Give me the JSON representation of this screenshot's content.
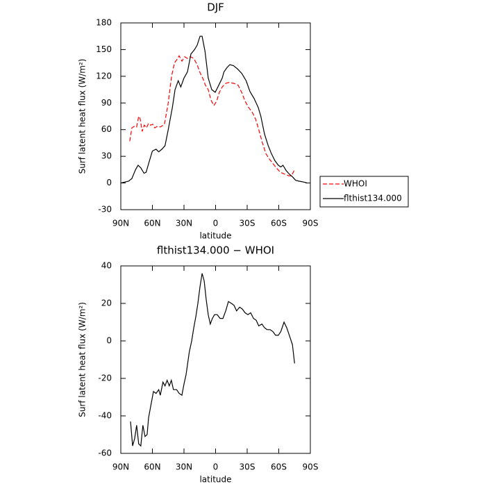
{
  "chart_data": [
    {
      "type": "line",
      "title": "DJF",
      "x_label": "latitude",
      "y_label": "Surf latent heat flux (W/m²)",
      "xlim": [
        90,
        -90
      ],
      "xticks": [
        {
          "value": 90,
          "label": "90N"
        },
        {
          "value": 60,
          "label": "60N"
        },
        {
          "value": 30,
          "label": "30N"
        },
        0,
        {
          "value": -30,
          "label": "30S"
        },
        {
          "value": -60,
          "label": "60S"
        },
        {
          "value": -90,
          "label": "90S"
        }
      ],
      "ylim": [
        -30,
        180
      ],
      "yticks": [
        -30,
        0,
        30,
        60,
        90,
        120,
        150,
        180
      ],
      "legend": "outside right",
      "series": [
        {
          "name": "WHOI",
          "color": "#ff0000",
          "dash": true,
          "x": [
            81.5,
            79.5,
            76.8,
            75,
            73,
            71.6,
            69.7,
            67.7,
            65.7,
            63.7,
            61.7,
            59.7,
            57.7,
            55,
            52.4,
            48.5,
            45,
            41.8,
            39,
            36.6,
            34.6,
            32,
            29.3,
            26.7,
            24,
            20.8,
            17.5,
            14.8,
            12.2,
            9.6,
            7,
            4.3,
            1.6,
            -1,
            -3.6,
            -6.3,
            -9.6,
            -12.9,
            -17.5,
            -21.4,
            -24.7,
            -28,
            -31.3,
            -34.6,
            -38,
            -41,
            -44.5,
            -47.8,
            -51,
            -54.4,
            -57.7,
            -61.6,
            -65.6,
            -69.6,
            -72,
            -75
          ],
          "values": [
            47,
            62,
            64,
            63,
            75,
            72,
            58,
            65,
            62,
            67,
            65,
            66,
            62,
            64,
            63,
            66,
            90,
            120,
            135,
            139,
            143,
            137,
            142,
            140,
            142,
            140,
            133,
            124,
            118,
            110,
            105,
            93,
            87,
            92,
            102,
            108,
            112,
            113,
            112,
            110,
            102,
            92,
            85,
            80,
            72,
            60,
            45,
            33,
            27,
            22,
            17,
            12,
            10,
            8,
            8,
            15
          ]
        },
        {
          "name": "flthist134.000",
          "color": "#000000",
          "dash": false,
          "x": [
            90,
            82.7,
            79.5,
            76,
            73.6,
            71,
            68,
            66,
            63,
            60,
            56.5,
            54,
            51,
            48,
            45,
            41,
            38.5,
            35.5,
            33,
            30,
            26.7,
            23.4,
            20,
            17.5,
            14.8,
            12.8,
            10,
            7,
            3.6,
            0.3,
            -3,
            -6.3,
            -8,
            -11,
            -13.5,
            -17,
            -21,
            -25,
            -29,
            -32.6,
            -36.6,
            -40.5,
            -43,
            -46.5,
            -50,
            -53,
            -56.4,
            -59.6,
            -62,
            -64,
            -67,
            -70,
            -73,
            -76,
            -79.5,
            -84,
            -87
          ],
          "values": [
            0,
            2,
            5,
            15,
            20,
            17,
            11,
            12,
            24,
            36,
            38,
            35,
            38,
            42,
            60,
            85,
            105,
            115,
            108,
            118,
            125,
            145,
            150,
            155,
            165,
            165,
            148,
            118,
            105,
            102,
            110,
            118,
            125,
            130,
            133,
            132,
            128,
            123,
            115,
            103,
            95,
            85,
            75,
            55,
            42,
            33,
            25,
            20,
            18,
            20,
            14,
            10,
            7,
            3,
            2,
            1,
            0
          ]
        }
      ]
    },
    {
      "type": "line",
      "title": "flthist134.000 − WHOI",
      "x_label": "latitude",
      "y_label": "Surf latent heat flux (W/m²)",
      "xlim": [
        90,
        -90
      ],
      "xticks": [
        {
          "value": 90,
          "label": "90N"
        },
        {
          "value": 60,
          "label": "60N"
        },
        {
          "value": 30,
          "label": "30N"
        },
        0,
        {
          "value": -30,
          "label": "30S"
        },
        {
          "value": -60,
          "label": "60S"
        },
        {
          "value": -90,
          "label": "90S"
        }
      ],
      "ylim": [
        -60,
        40
      ],
      "yticks": [
        -60,
        -40,
        -20,
        0,
        20,
        40
      ],
      "series": [
        {
          "color": "#000000",
          "dash": false,
          "x": [
            80.8,
            78.8,
            76.8,
            75,
            73,
            71,
            69,
            67,
            65,
            63.6,
            61,
            59,
            56.5,
            54,
            52.5,
            50,
            48,
            46,
            44,
            42,
            40,
            37,
            34.6,
            32,
            30,
            28,
            25,
            22.7,
            20.7,
            18.7,
            16.8,
            14.8,
            12.8,
            10.8,
            8.9,
            7,
            5,
            3,
            1,
            -1.6,
            -4.3,
            -7,
            -9.6,
            -12.2,
            -15,
            -17.5,
            -20,
            -22.8,
            -25.4,
            -28,
            -30.7,
            -33.3,
            -36,
            -38.6,
            -41,
            -44,
            -46.5,
            -49,
            -51.8,
            -54.4,
            -57,
            -59.6,
            -62,
            -65,
            -67.6,
            -70,
            -73,
            -75
          ],
          "values": [
            -43,
            -56,
            -52,
            -45,
            -55,
            -56,
            -45,
            -51,
            -50,
            -41,
            -33,
            -27,
            -28,
            -26,
            -29,
            -22,
            -24,
            -21,
            -24,
            -21,
            -26,
            -26,
            -28,
            -29,
            -23,
            -18,
            -6,
            0,
            7,
            13,
            20,
            29,
            36,
            32,
            22,
            14,
            9,
            12,
            14,
            14,
            12,
            12,
            16,
            21,
            20,
            19,
            16,
            18,
            17,
            15,
            14,
            15,
            12,
            11,
            8,
            9,
            7,
            6,
            6,
            5,
            3,
            3,
            5,
            10,
            7,
            3,
            -2,
            -12
          ]
        }
      ]
    }
  ]
}
